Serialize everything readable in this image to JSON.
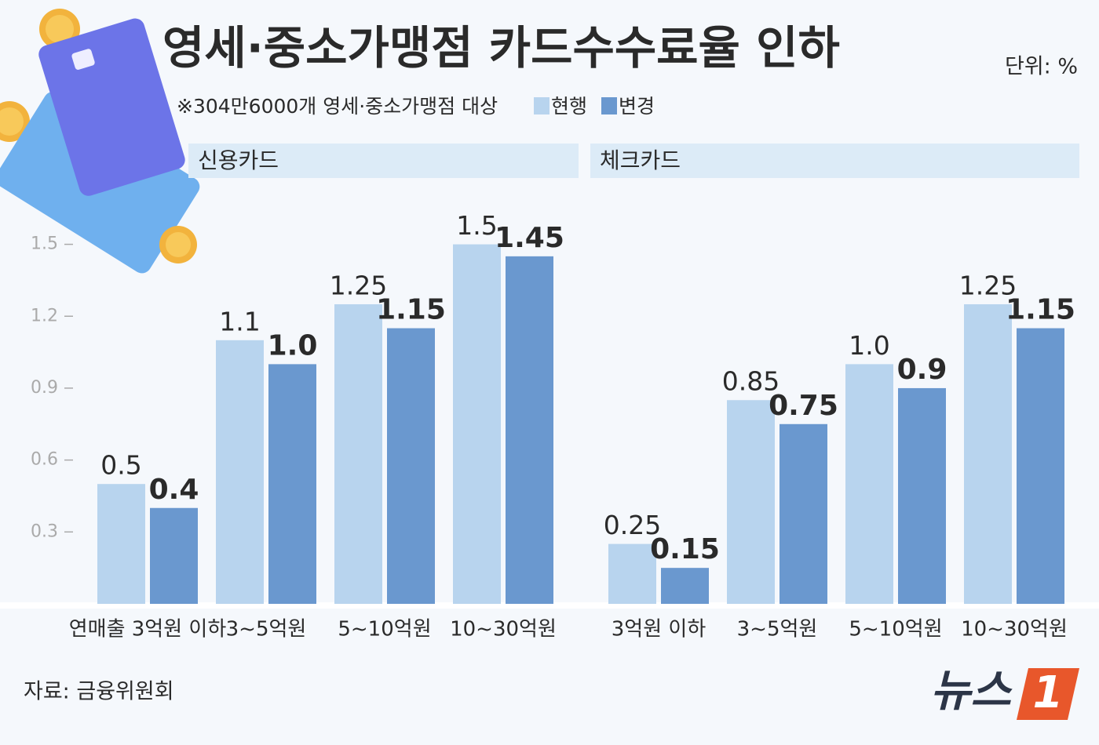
{
  "header": {
    "title": "영세·중소가맹점 카드수수료율 인하",
    "unit": "단위: %",
    "note": "※304만6000개 영세·중소가맹점 대상"
  },
  "footer": {
    "source": "자료: 금융위원회",
    "logo_text": "뉴스",
    "logo_number": "1"
  },
  "chart_data": [
    {
      "type": "bar",
      "title": "신용카드",
      "categories": [
        "연매출 3억원 이하",
        "3~5억원",
        "5~10억원",
        "10~30억원"
      ],
      "series": [
        {
          "name": "현행",
          "color": "#b8d4ee",
          "values": [
            0.5,
            1.1,
            1.25,
            1.5
          ],
          "value_labels": [
            "0.5",
            "1.1",
            "1.25",
            "1.5"
          ]
        },
        {
          "name": "변경",
          "color": "#6a98cf",
          "values": [
            0.4,
            1.0,
            1.15,
            1.45
          ],
          "value_labels": [
            "0.4",
            "1.0",
            "1.15",
            "1.45"
          ]
        }
      ],
      "ylim": [
        0,
        1.6
      ],
      "yticks": [
        0.3,
        0.6,
        0.9,
        1.2,
        1.5
      ]
    },
    {
      "type": "bar",
      "title": "체크카드",
      "categories": [
        "3억원 이하",
        "3~5억원",
        "5~10억원",
        "10~30억원"
      ],
      "series": [
        {
          "color": "#b8d4ee",
          "values": [
            0.25,
            0.85,
            1.0,
            1.25
          ],
          "value_labels": [
            "0.25",
            "0.85",
            "1.0",
            "1.25"
          ]
        },
        {
          "color": "#6a98cf",
          "values": [
            0.15,
            0.75,
            0.9,
            1.15
          ],
          "value_labels": [
            "0.15",
            "0.75",
            "0.9",
            "1.15"
          ]
        }
      ],
      "ylim": [
        0,
        1.6
      ]
    }
  ]
}
